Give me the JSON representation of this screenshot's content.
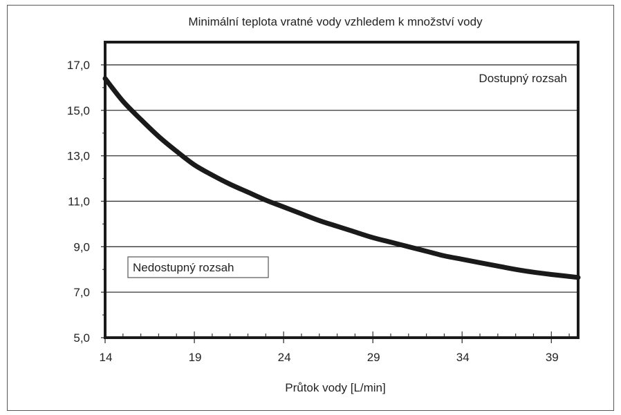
{
  "chart_data": {
    "type": "line",
    "title": "Minimální teplota vratné vody vzhledem k množství vody",
    "xlabel": "Průtok vody [L/min]",
    "ylabel": "",
    "xlim": [
      14,
      40.5
    ],
    "ylim": [
      5.0,
      18.0
    ],
    "x_ticks": [
      14,
      19,
      24,
      29,
      34,
      39
    ],
    "x_tick_labels": [
      "14",
      "19",
      "24",
      "29",
      "34",
      "39"
    ],
    "y_ticks": [
      5,
      7,
      9,
      11,
      13,
      15,
      17
    ],
    "y_tick_labels": [
      "5,0",
      "7,0",
      "9,0",
      "11,0",
      "13,0",
      "15,0",
      "17,0"
    ],
    "grid": "horizontal",
    "series": [
      {
        "x": [
          14,
          15,
          16,
          17,
          18,
          19,
          20,
          21,
          22,
          23,
          24,
          25,
          26,
          27,
          28,
          29,
          30,
          31,
          32,
          33,
          34,
          35,
          36,
          37,
          38,
          39,
          40.5
        ],
        "y": [
          16.4,
          15.4,
          14.6,
          13.85,
          13.2,
          12.6,
          12.15,
          11.75,
          11.4,
          11.05,
          10.75,
          10.45,
          10.15,
          9.9,
          9.65,
          9.4,
          9.2,
          9.0,
          8.8,
          8.6,
          8.45,
          8.3,
          8.15,
          8.0,
          7.88,
          7.78,
          7.65
        ],
        "color": "#1a1a1a"
      }
    ],
    "annotations": {
      "upper": "Dostupný rozsah",
      "lower": "Nedostupný rozsah"
    }
  }
}
